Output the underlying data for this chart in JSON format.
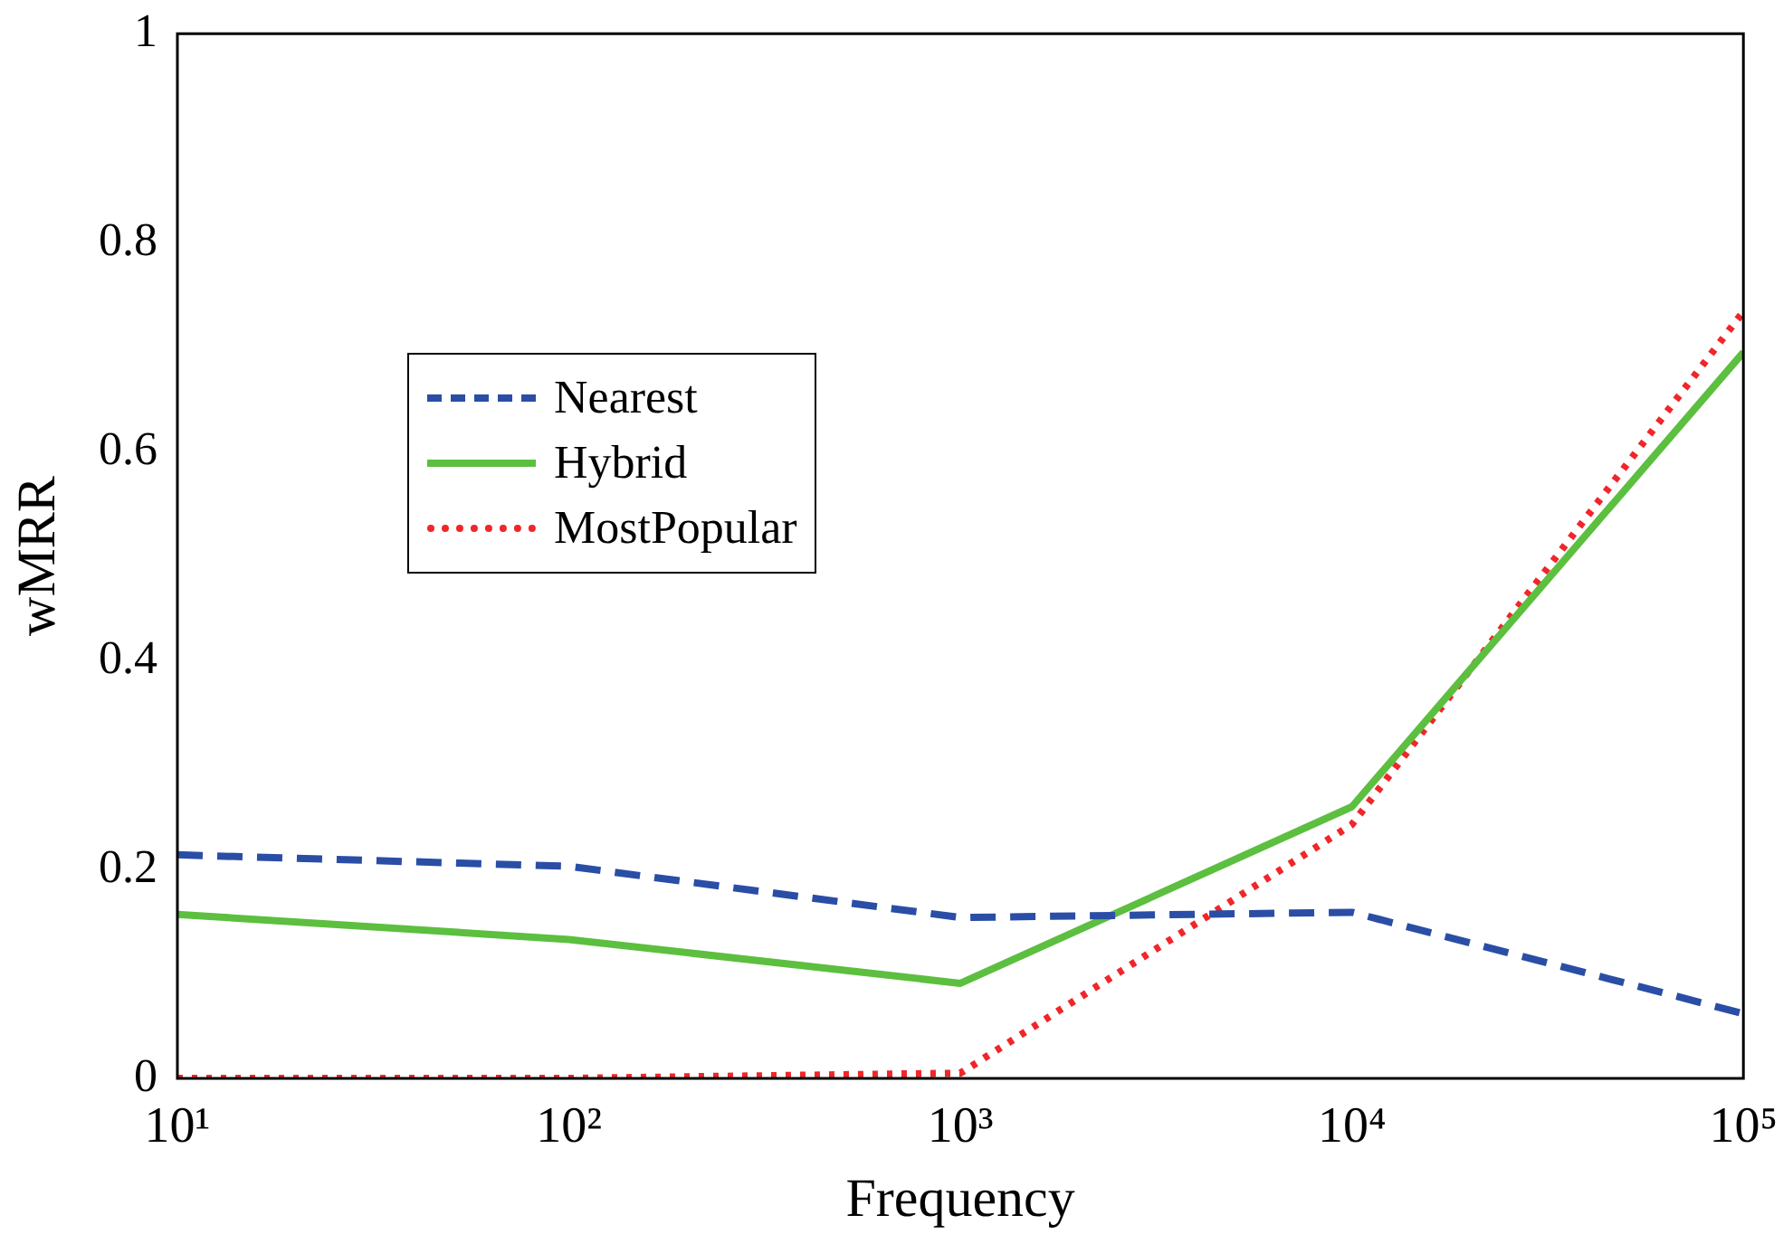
{
  "chart_data": {
    "type": "line",
    "xlabel": "Frequency",
    "ylabel": "wMRR",
    "log": "x",
    "x": [
      10,
      100,
      1000,
      10000,
      100000
    ],
    "xlim": [
      10,
      100000
    ],
    "xticks": [
      {
        "value": 10,
        "label": "10¹"
      },
      {
        "value": 100,
        "label": "10²"
      },
      {
        "value": 1000,
        "label": "10³"
      },
      {
        "value": 10000,
        "label": "10⁴"
      },
      {
        "value": 100000,
        "label": "10⁵"
      }
    ],
    "ylim": [
      0,
      1
    ],
    "yticks": [
      0,
      0.2,
      0.4,
      0.6,
      0.8,
      1
    ],
    "grid": false,
    "legend": "left",
    "marker": "none",
    "series": [
      {
        "name": "Nearest",
        "color": "#2a4ea6",
        "line_style": "dashed",
        "values": [
          0.214,
          0.203,
          0.154,
          0.159,
          0.062
        ]
      },
      {
        "name": "Hybrid",
        "color": "#5cbf3f",
        "line_style": "solid",
        "values": [
          0.157,
          0.133,
          0.091,
          0.26,
          0.695
        ]
      },
      {
        "name": "MostPopular",
        "color": "#f0262a",
        "line_style": "dotted",
        "values": [
          0,
          0,
          0.005,
          0.243,
          0.734
        ]
      }
    ]
  }
}
